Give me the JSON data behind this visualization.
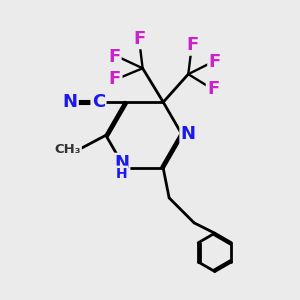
{
  "bg_color": "#ebebeb",
  "bond_color": "#000000",
  "bond_width": 2.0,
  "atom_colors": {
    "N": "#1a1aee",
    "C": "#1a1aee",
    "F": "#cc22cc",
    "H": "#1a1aee"
  },
  "font_size": 13,
  "figsize": [
    3.0,
    3.0
  ],
  "dpi": 100
}
